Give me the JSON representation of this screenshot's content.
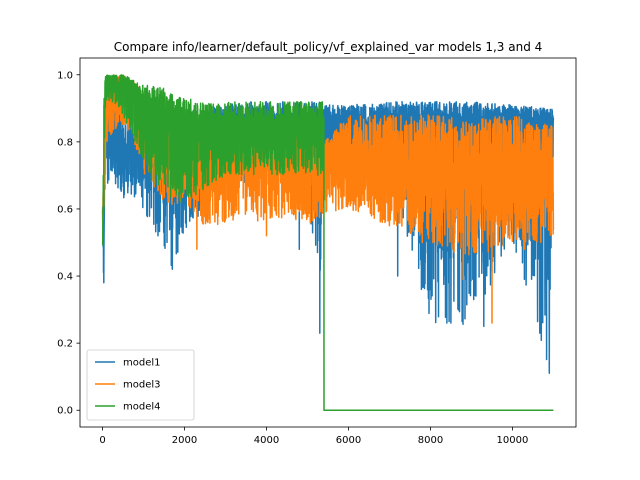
{
  "chart_data": {
    "type": "line",
    "title": "Compare info/learner/default_policy/vf_explained_var models 1,3 and 4",
    "xlabel": "",
    "ylabel": "",
    "xlim": [
      -550,
      11550
    ],
    "ylim": [
      -0.05,
      1.05
    ],
    "xticks": [
      0,
      2000,
      4000,
      6000,
      8000,
      10000
    ],
    "yticks": [
      0.0,
      0.2,
      0.4,
      0.6,
      0.8,
      1.0
    ],
    "grid": false,
    "legend": {
      "placement": "lower-left"
    },
    "series": [
      {
        "name": "model1",
        "color": "#1f77b4",
        "x": [
          0,
          30,
          60,
          100,
          200,
          300,
          400,
          500,
          600,
          800,
          1000,
          1200,
          1500,
          1700,
          2000,
          2500,
          3000,
          3500,
          4000,
          4500,
          5000,
          5300,
          5400,
          6000,
          7000,
          8000,
          9000,
          10000,
          10900,
          11000
        ],
        "y": [
          0.6,
          0.38,
          0.9,
          0.75,
          0.85,
          0.82,
          0.8,
          0.78,
          0.8,
          0.78,
          0.8,
          0.78,
          0.8,
          0.76,
          0.8,
          0.79,
          0.82,
          0.84,
          0.84,
          0.84,
          0.84,
          0.85,
          0.85,
          0.85,
          0.86,
          0.86,
          0.85,
          0.86,
          0.85,
          0.85
        ],
        "envelope_high": [
          0.7,
          0.6,
          0.98,
          0.9,
          0.9,
          0.9,
          0.9,
          0.9,
          0.88,
          0.88,
          0.88,
          0.88,
          0.88,
          0.88,
          0.89,
          0.9,
          0.91,
          0.92,
          0.92,
          0.92,
          0.92,
          0.92,
          0.91,
          0.91,
          0.92,
          0.92,
          0.92,
          0.91,
          0.9,
          0.9
        ],
        "envelope_low": [
          0.5,
          0.38,
          0.7,
          0.65,
          0.7,
          0.68,
          0.65,
          0.62,
          0.65,
          0.62,
          0.6,
          0.55,
          0.48,
          0.42,
          0.53,
          0.6,
          0.65,
          0.68,
          0.7,
          0.7,
          0.68,
          0.23,
          0.72,
          0.75,
          0.7,
          0.26,
          0.25,
          0.5,
          0.11,
          0.75
        ],
        "spikes": [
          [
            1700,
            0.42
          ],
          [
            1950,
            0.53
          ],
          [
            4800,
            0.48
          ],
          [
            5300,
            0.23
          ],
          [
            7200,
            0.4
          ],
          [
            8400,
            0.26
          ],
          [
            8500,
            0.26
          ],
          [
            9300,
            0.25
          ],
          [
            10800,
            0.38
          ],
          [
            10900,
            0.11
          ]
        ]
      },
      {
        "name": "model3",
        "color": "#ff7f0e",
        "x": [
          0,
          100,
          300,
          500,
          800,
          1000,
          1500,
          2000,
          2500,
          3000,
          3500,
          4000,
          4500,
          5000,
          5400,
          6000,
          7000,
          8000,
          9000,
          10000,
          11000
        ],
        "y": [
          0.55,
          0.92,
          0.92,
          0.95,
          0.9,
          0.85,
          0.8,
          0.76,
          0.72,
          0.72,
          0.73,
          0.74,
          0.74,
          0.72,
          0.7,
          0.7,
          0.7,
          0.7,
          0.7,
          0.7,
          0.7
        ],
        "envelope_high": [
          0.6,
          1.0,
          1.0,
          1.0,
          0.98,
          0.95,
          0.92,
          0.9,
          0.85,
          0.85,
          0.86,
          0.86,
          0.85,
          0.85,
          0.8,
          0.88,
          0.88,
          0.88,
          0.87,
          0.88,
          0.85
        ],
        "envelope_low": [
          0.5,
          0.8,
          0.82,
          0.85,
          0.78,
          0.7,
          0.62,
          0.6,
          0.55,
          0.55,
          0.58,
          0.55,
          0.58,
          0.55,
          0.58,
          0.6,
          0.55,
          0.5,
          0.45,
          0.5,
          0.5
        ],
        "spikes": [
          [
            2300,
            0.48
          ],
          [
            4000,
            0.52
          ],
          [
            7800,
            0.5
          ],
          [
            8800,
            0.39
          ],
          [
            9500,
            0.26
          ],
          [
            10300,
            0.48
          ]
        ]
      },
      {
        "name": "model4",
        "color": "#2ca02c",
        "x": [
          0,
          30,
          60,
          100,
          200,
          400,
          600,
          800,
          1000,
          1200,
          1500,
          1800,
          2000,
          2500,
          3000,
          3500,
          4000,
          4500,
          5000,
          5350,
          5400,
          5401,
          6000,
          8000,
          10000,
          11000
        ],
        "y": [
          0.48,
          0.75,
          0.95,
          0.99,
          0.98,
          0.98,
          0.98,
          0.96,
          0.9,
          0.88,
          0.86,
          0.84,
          0.82,
          0.82,
          0.82,
          0.82,
          0.82,
          0.82,
          0.82,
          0.82,
          0.82,
          0.0,
          0.0,
          0.0,
          0.0,
          0.0
        ],
        "envelope_high": [
          0.5,
          0.9,
          1.0,
          1.0,
          1.0,
          1.0,
          1.0,
          0.98,
          0.97,
          0.97,
          0.96,
          0.94,
          0.93,
          0.92,
          0.92,
          0.92,
          0.92,
          0.92,
          0.92,
          0.92,
          0.92,
          0.0,
          0.0,
          0.0,
          0.0,
          0.0
        ],
        "envelope_low": [
          0.48,
          0.6,
          0.88,
          0.92,
          0.92,
          0.9,
          0.85,
          0.8,
          0.72,
          0.68,
          0.65,
          0.62,
          0.62,
          0.66,
          0.7,
          0.7,
          0.7,
          0.7,
          0.7,
          0.7,
          0.7,
          0.0,
          0.0,
          0.0,
          0.0,
          0.0
        ],
        "spikes": []
      }
    ]
  }
}
